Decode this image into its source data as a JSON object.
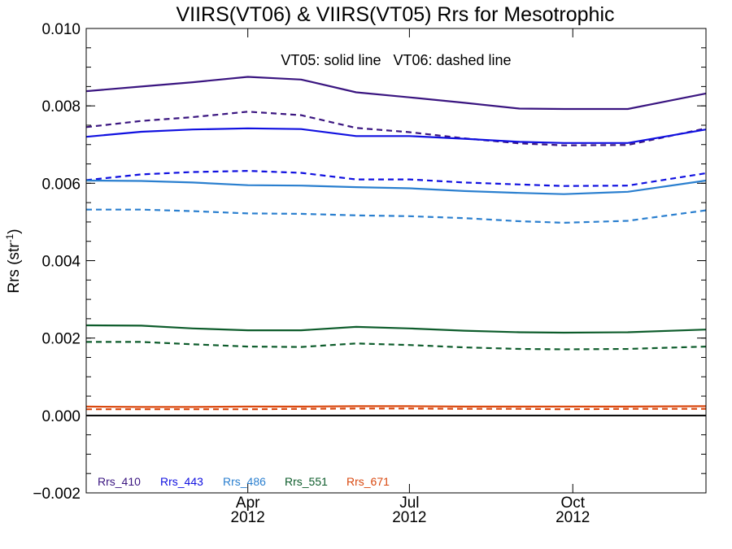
{
  "chart_data": {
    "type": "line",
    "title": "VIIRS(VT06) & VIIRS(VT05)  Rrs for Mesotrophic",
    "ylabel": "Rrs (str",
    "ylabel_sup": "-1",
    "ylabel_close": ")",
    "annotation": "VT05: solid line   VT06: dashed line",
    "xlim": [
      "2012-01-01",
      "2012-12-15"
    ],
    "ylim": [
      -0.002,
      0.01
    ],
    "yticks": [
      -0.002,
      0.0,
      0.002,
      0.004,
      0.006,
      0.008,
      0.01
    ],
    "ytick_labels": [
      "−0.002",
      "0.000",
      "0.002",
      "0.004",
      "0.006",
      "0.008",
      "0.010"
    ],
    "xticks": [
      {
        "date": "2012-04-01",
        "month": "Apr",
        "year": "2012"
      },
      {
        "date": "2012-07-01",
        "month": "Jul",
        "year": "2012"
      },
      {
        "date": "2012-10-01",
        "month": "Oct",
        "year": "2012"
      }
    ],
    "zero_line": 0.0,
    "x": [
      "2012-01-01",
      "2012-02-01",
      "2012-03-01",
      "2012-04-01",
      "2012-05-01",
      "2012-06-01",
      "2012-07-01",
      "2012-08-01",
      "2012-09-01",
      "2012-09-26",
      "2012-11-01",
      "2012-12-15"
    ],
    "series": [
      {
        "name": "Rrs_410",
        "color": "#3a1580",
        "style": "solid",
        "values": [
          0.00838,
          0.0085,
          0.00861,
          0.00875,
          0.00868,
          0.00835,
          0.00822,
          0.00808,
          0.00793,
          0.00792,
          0.00792,
          0.00832
        ]
      },
      {
        "name": "Rrs_410",
        "color": "#3a1580",
        "style": "dashed",
        "values": [
          0.00745,
          0.00761,
          0.00771,
          0.00785,
          0.00776,
          0.00743,
          0.00732,
          0.00716,
          0.00703,
          0.00698,
          0.00699,
          0.00742
        ]
      },
      {
        "name": "Rrs_443",
        "color": "#1010e0",
        "style": "solid",
        "values": [
          0.0072,
          0.00733,
          0.00739,
          0.00742,
          0.0074,
          0.00722,
          0.00722,
          0.00715,
          0.00707,
          0.00704,
          0.00704,
          0.00739
        ]
      },
      {
        "name": "Rrs_443",
        "color": "#1010e0",
        "style": "dashed",
        "values": [
          0.00608,
          0.00623,
          0.00629,
          0.00632,
          0.00627,
          0.0061,
          0.0061,
          0.00602,
          0.00597,
          0.00593,
          0.00594,
          0.00626
        ]
      },
      {
        "name": "Rrs_486",
        "color": "#2a7fcf",
        "style": "solid",
        "values": [
          0.00607,
          0.00606,
          0.00602,
          0.00595,
          0.00594,
          0.0059,
          0.00587,
          0.0058,
          0.00575,
          0.00572,
          0.00578,
          0.00607
        ]
      },
      {
        "name": "Rrs_486",
        "color": "#2a7fcf",
        "style": "dashed",
        "values": [
          0.00532,
          0.00532,
          0.00528,
          0.00522,
          0.00521,
          0.00517,
          0.00515,
          0.0051,
          0.00502,
          0.00498,
          0.00503,
          0.0053
        ]
      },
      {
        "name": "Rrs_551",
        "color": "#0d5c2b",
        "style": "solid",
        "values": [
          0.00233,
          0.00232,
          0.00225,
          0.0022,
          0.0022,
          0.00229,
          0.00225,
          0.00219,
          0.00215,
          0.00214,
          0.00215,
          0.00222
        ]
      },
      {
        "name": "Rrs_551",
        "color": "#0d5c2b",
        "style": "dashed",
        "values": [
          0.0019,
          0.0019,
          0.00184,
          0.00178,
          0.00177,
          0.00186,
          0.00182,
          0.00176,
          0.00172,
          0.00171,
          0.00172,
          0.00178
        ]
      },
      {
        "name": "Rrs_671",
        "color": "#d9480f",
        "style": "solid",
        "values": [
          0.00023,
          0.00022,
          0.00022,
          0.00023,
          0.00023,
          0.00024,
          0.00024,
          0.00023,
          0.00023,
          0.00023,
          0.00023,
          0.00024
        ]
      },
      {
        "name": "Rrs_671",
        "color": "#d9480f",
        "style": "dashed",
        "values": [
          0.00016,
          0.00016,
          0.00016,
          0.00016,
          0.00017,
          0.00018,
          0.00018,
          0.00017,
          0.00017,
          0.00016,
          0.00017,
          0.00017
        ]
      }
    ],
    "legend": [
      {
        "label": "Rrs_410",
        "color": "#3a1580"
      },
      {
        "label": "Rrs_443",
        "color": "#1010e0"
      },
      {
        "label": "Rrs_486",
        "color": "#2a7fcf"
      },
      {
        "label": "Rrs_551",
        "color": "#0d5c2b"
      },
      {
        "label": "Rrs_671",
        "color": "#d9480f"
      }
    ],
    "legend_placement": "bottom-left",
    "grid": false
  }
}
